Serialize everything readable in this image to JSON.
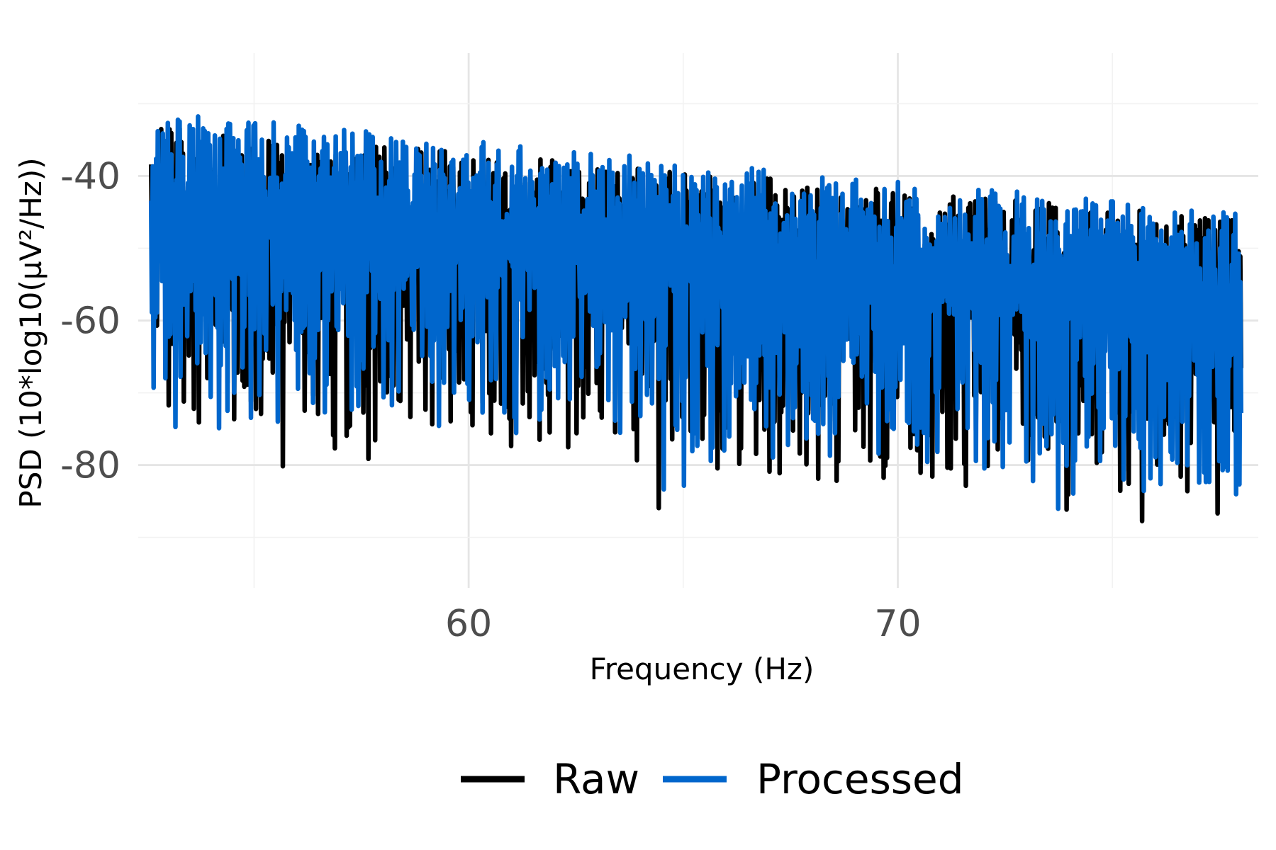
{
  "chart_data": {
    "type": "line",
    "xlabel": "Frequency (Hz)",
    "ylabel": "PSD (10*log10(µV²/Hz))",
    "xlim": [
      52.3,
      78.4
    ],
    "ylim": [
      -97,
      -23
    ],
    "x_ticks": [
      60,
      70
    ],
    "x_tick_labels": [
      "60",
      "70"
    ],
    "y_ticks": [
      -40,
      -60,
      -80
    ],
    "y_tick_labels": [
      "-40",
      "-60",
      "-80"
    ],
    "grid": true,
    "legend_position": "bottom",
    "series": [
      {
        "name": "Raw",
        "color": "#000000",
        "x_range": [
          52.6,
          78.0
        ],
        "trend_start": -43,
        "trend_end": -56,
        "spike_up": 12,
        "dip_down": 27,
        "min_value": -94.5,
        "max_value": -30.5
      },
      {
        "name": "Processed",
        "color": "#0066cc",
        "x_range": [
          52.6,
          78.0
        ],
        "trend_start": -42,
        "trend_end": -56,
        "spike_up": 13,
        "dip_down": 25,
        "min_value": -89.0,
        "max_value": -29.0
      }
    ]
  }
}
